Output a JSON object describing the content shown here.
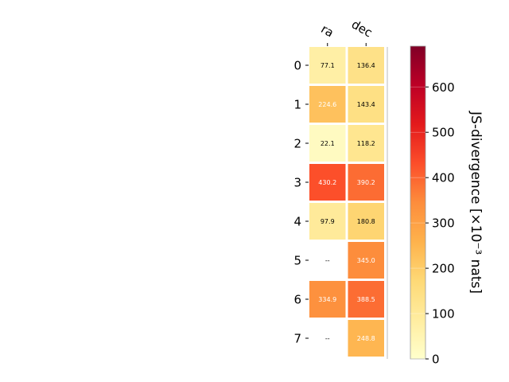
{
  "chart_data": {
    "type": "heatmap",
    "columns": [
      "ra",
      "dec"
    ],
    "rows": [
      "0",
      "1",
      "2",
      "3",
      "4",
      "5",
      "6",
      "7"
    ],
    "values": [
      [
        77.1,
        136.4
      ],
      [
        224.6,
        143.4
      ],
      [
        22.1,
        118.2
      ],
      [
        430.2,
        390.2
      ],
      [
        97.9,
        180.8
      ],
      [
        null,
        345.0
      ],
      [
        334.9,
        388.5
      ],
      [
        null,
        248.8
      ]
    ],
    "cell_labels": [
      [
        "77.1",
        "136.4"
      ],
      [
        "224.6",
        "143.4"
      ],
      [
        "22.1",
        "118.2"
      ],
      [
        "430.2",
        "390.2"
      ],
      [
        "97.9",
        "180.8"
      ],
      [
        "--",
        "345.0"
      ],
      [
        "334.9",
        "388.5"
      ],
      [
        "--",
        "248.8"
      ]
    ],
    "colorbar": {
      "label": "JS-divergence [×10⁻³ nats]",
      "min": 0,
      "max": 690,
      "ticks": [
        0,
        100,
        200,
        300,
        400,
        500,
        600
      ],
      "tick_labels": [
        "0",
        "100",
        "200",
        "300",
        "400",
        "500",
        "600"
      ],
      "colormap": "YlOrRd"
    },
    "missing_label": "--",
    "colors": {
      "low": "#ffffcc",
      "mid": "#fd8d3c",
      "high": "#800026",
      "grid": "#ffffff"
    }
  }
}
